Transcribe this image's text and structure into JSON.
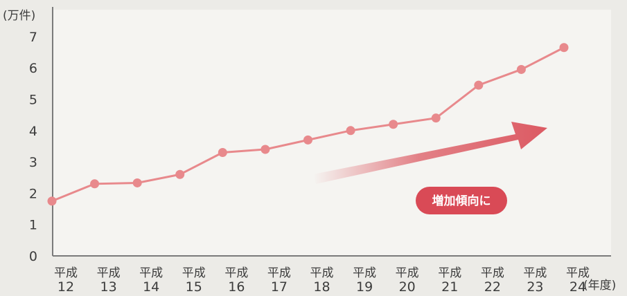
{
  "chart_data": {
    "type": "line",
    "y_unit": "(万件)",
    "x_unit": "(年度)",
    "ylim": [
      0,
      7.4
    ],
    "yticks": [
      "0",
      "1",
      "2",
      "3",
      "4",
      "5",
      "6",
      "7"
    ],
    "categories": [
      {
        "top": "平成",
        "bottom": "12"
      },
      {
        "top": "平成",
        "bottom": "13"
      },
      {
        "top": "平成",
        "bottom": "14"
      },
      {
        "top": "平成",
        "bottom": "15"
      },
      {
        "top": "平成",
        "bottom": "16"
      },
      {
        "top": "平成",
        "bottom": "17"
      },
      {
        "top": "平成",
        "bottom": "18"
      },
      {
        "top": "平成",
        "bottom": "19"
      },
      {
        "top": "平成",
        "bottom": "20"
      },
      {
        "top": "平成",
        "bottom": "21"
      },
      {
        "top": "平成",
        "bottom": "22"
      },
      {
        "top": "平成",
        "bottom": "23"
      },
      {
        "top": "平成",
        "bottom": "24"
      }
    ],
    "series": [
      {
        "values": [
          1.75,
          2.3,
          2.33,
          2.6,
          3.3,
          3.4,
          3.7,
          4.0,
          4.2,
          4.4,
          5.45,
          5.95,
          6.65
        ]
      }
    ],
    "annotation": {
      "label": "増加傾向に"
    },
    "grid": false,
    "line_color": "#e8898c",
    "arrow_color": "#dc5a63",
    "badge_color": "#d94a56"
  }
}
